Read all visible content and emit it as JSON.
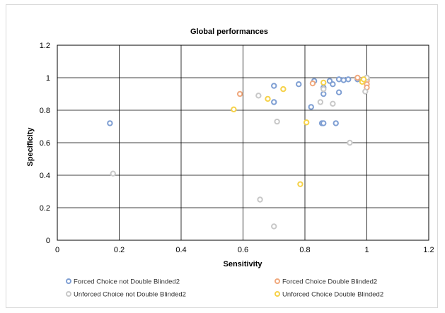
{
  "chart_data": {
    "type": "scatter",
    "title": "Global performances",
    "xlabel": "Sensitivity",
    "ylabel": "Specificity",
    "xlim": [
      0,
      1.2
    ],
    "ylim": [
      0,
      1.2
    ],
    "xticks": [
      "0",
      "0.2",
      "0.4",
      "0.6",
      "0.8",
      "1",
      "1.2"
    ],
    "yticks": [
      "0",
      "0.2",
      "0.4",
      "0.6",
      "0.8",
      "1",
      "1.2"
    ],
    "grid": true,
    "legend_position": "bottom",
    "series": [
      {
        "name": "Forced Choice not Double Blinded2",
        "color": "#7f9fd3",
        "points": [
          [
            0.17,
            0.72
          ],
          [
            0.7,
            0.95
          ],
          [
            0.7,
            0.85
          ],
          [
            0.78,
            0.96
          ],
          [
            0.82,
            0.82
          ],
          [
            0.83,
            0.98
          ],
          [
            0.855,
            0.72
          ],
          [
            0.86,
            0.72
          ],
          [
            0.86,
            0.9
          ],
          [
            0.86,
            0.94
          ],
          [
            0.88,
            0.98
          ],
          [
            0.89,
            0.96
          ],
          [
            0.9,
            0.72
          ],
          [
            0.91,
            0.91
          ],
          [
            0.91,
            0.99
          ],
          [
            0.925,
            0.985
          ],
          [
            0.94,
            0.99
          ],
          [
            0.97,
            0.99
          ],
          [
            1.0,
            0.99
          ],
          [
            1.0,
            1.0
          ]
        ]
      },
      {
        "name": "Forced Choice Double Blinded2",
        "color": "#f0a97e",
        "points": [
          [
            0.59,
            0.9
          ],
          [
            0.825,
            0.965
          ],
          [
            0.97,
            1.0
          ],
          [
            1.0,
            0.98
          ],
          [
            1.0,
            0.96
          ],
          [
            1.0,
            0.94
          ]
        ]
      },
      {
        "name": "Unforced Choice not Double Blinded2",
        "color": "#c8c8c8",
        "points": [
          [
            0.18,
            0.41
          ],
          [
            0.65,
            0.89
          ],
          [
            0.655,
            0.25
          ],
          [
            0.7,
            0.085
          ],
          [
            0.71,
            0.73
          ],
          [
            0.85,
            0.85
          ],
          [
            0.86,
            0.93
          ],
          [
            0.89,
            0.84
          ],
          [
            0.945,
            0.6
          ],
          [
            0.995,
            0.915
          ],
          [
            1.0,
            1.0
          ]
        ]
      },
      {
        "name": "Unforced Choice Double Blinded2",
        "color": "#f6d24a",
        "points": [
          [
            0.57,
            0.805
          ],
          [
            0.68,
            0.87
          ],
          [
            0.73,
            0.93
          ],
          [
            0.785,
            0.345
          ],
          [
            0.805,
            0.725
          ],
          [
            0.86,
            0.97
          ],
          [
            0.985,
            0.975
          ],
          [
            0.99,
            0.99
          ]
        ]
      }
    ]
  }
}
